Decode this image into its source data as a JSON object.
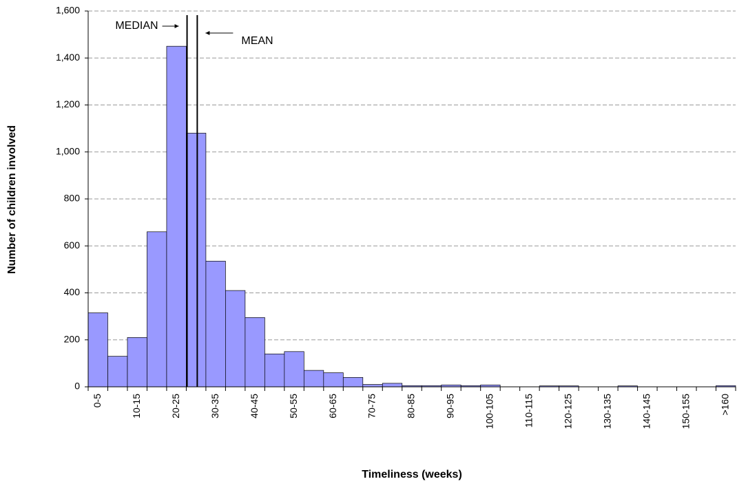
{
  "chart_data": {
    "type": "bar",
    "x_label": "Timeliness (weeks)",
    "y_label": "Number of children involved",
    "categories": [
      "0-5",
      null,
      "10-15",
      null,
      "20-25",
      null,
      "30-35",
      null,
      "40-45",
      null,
      "50-55",
      null,
      "60-65",
      null,
      "70-75",
      null,
      "80-85",
      null,
      "90-95",
      null,
      "100-105",
      null,
      "110-115",
      null,
      "120-125",
      null,
      "130-135",
      null,
      "140-145",
      null,
      "150-155",
      null,
      ">160"
    ],
    "values": [
      315,
      130,
      210,
      660,
      1450,
      1080,
      535,
      410,
      295,
      140,
      150,
      70,
      60,
      40,
      10,
      15,
      5,
      5,
      8,
      5,
      8,
      0,
      0,
      4,
      4,
      0,
      0,
      4,
      0,
      0,
      0,
      0,
      5
    ],
    "color": "#9999ff",
    "xlim": [
      0,
      165
    ],
    "ylim": [
      0,
      1600
    ],
    "yticks": [
      0,
      200,
      400,
      600,
      800,
      {
        "value": 1000,
        "label": "1,000"
      },
      {
        "value": 1200,
        "label": "1,200"
      },
      {
        "value": 1400,
        "label": "1,400"
      },
      {
        "value": 1600,
        "label": "1,600"
      }
    ],
    "grid": true,
    "annotations": [
      {
        "text": "MEDIAN",
        "x": 25.2
      },
      {
        "text": "MEAN",
        "x": 27.8
      }
    ]
  }
}
